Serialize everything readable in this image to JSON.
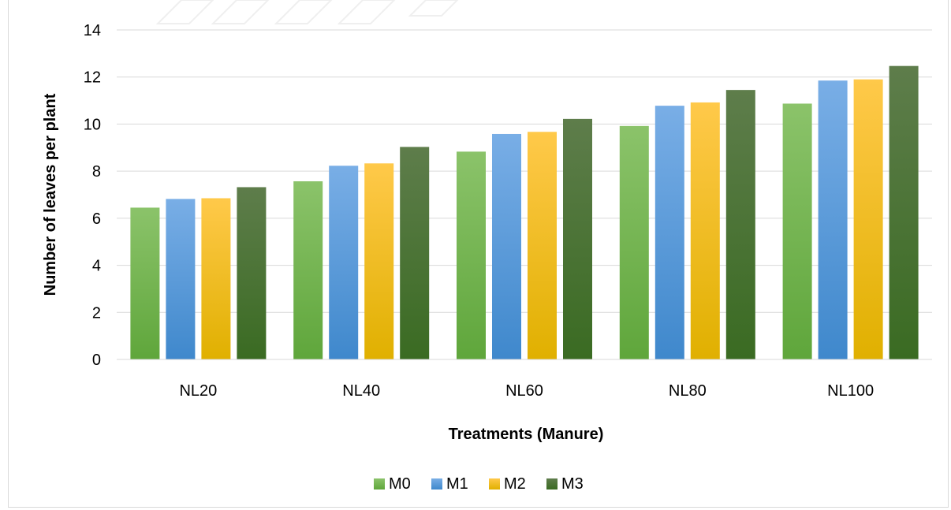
{
  "chart_data": {
    "type": "bar",
    "title": "",
    "xlabel": "Treatments (Manure)",
    "ylabel": "Number of leaves per plant",
    "ylim": [
      0,
      14
    ],
    "yticks": [
      "0",
      "2",
      "4",
      "6",
      "8",
      "10",
      "12",
      "14"
    ],
    "categories": [
      "NL20",
      "NL40",
      "NL60",
      "NL80",
      "NL100"
    ],
    "series": [
      {
        "name": "M0",
        "color_top": "#8bc36a",
        "color_bottom": "#5fa63b",
        "values": [
          6.45,
          7.57,
          8.83,
          9.92,
          10.87
        ]
      },
      {
        "name": "M1",
        "color_top": "#79aee6",
        "color_bottom": "#3f88cc",
        "values": [
          6.82,
          8.23,
          9.58,
          10.78,
          11.85
        ]
      },
      {
        "name": "M2",
        "color_top": "#ffc94a",
        "color_bottom": "#e0b000",
        "values": [
          6.85,
          8.33,
          9.67,
          10.92,
          11.9
        ]
      },
      {
        "name": "M3",
        "color_top": "#5e7d4b",
        "color_bottom": "#3a6b22",
        "values": [
          7.32,
          9.03,
          10.22,
          11.45,
          12.47
        ]
      }
    ],
    "grid": true,
    "legend_position": "bottom"
  }
}
